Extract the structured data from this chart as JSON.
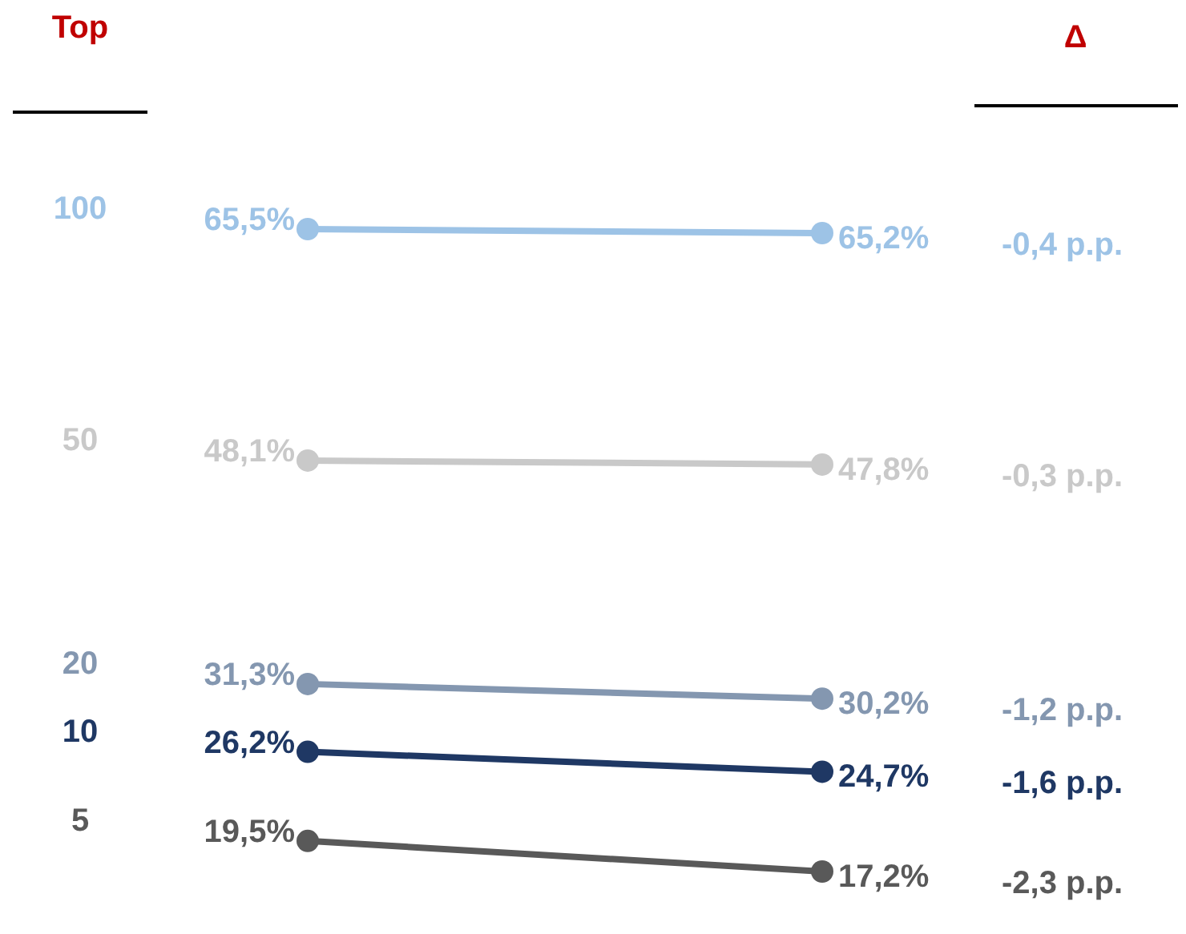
{
  "chart_data": {
    "type": "line",
    "legend_title": "Top",
    "categories": [
      null,
      null
    ],
    "marker": "circle",
    "legend": false,
    "series": [
      {
        "name": "100",
        "color": "#9dc3e6",
        "values": [
          65.5,
          65.2
        ],
        "value_labels": [
          "65,5%",
          "65,2%"
        ]
      },
      {
        "name": "50",
        "color": "#c9c9c9",
        "values": [
          48.1,
          47.8
        ],
        "value_labels": [
          "48,1%",
          "47,8%"
        ]
      },
      {
        "name": "20",
        "color": "#8497b0",
        "values": [
          31.3,
          30.2
        ],
        "value_labels": [
          "31,3%",
          "30,2%"
        ]
      },
      {
        "name": "10",
        "color": "#1f3864",
        "values": [
          26.2,
          24.7
        ],
        "value_labels": [
          "26,2%",
          "24,7%"
        ]
      },
      {
        "name": "5",
        "color": "#595959",
        "values": [
          19.5,
          17.2
        ],
        "value_labels": [
          "19,5%",
          "17,2%"
        ]
      }
    ],
    "annotations": [
      "Δ",
      "-0,4 p.p.",
      "-0,3 p.p.",
      "-1,2 p.p.",
      "-1,6 p.p.",
      "-2,3 p.p."
    ]
  }
}
